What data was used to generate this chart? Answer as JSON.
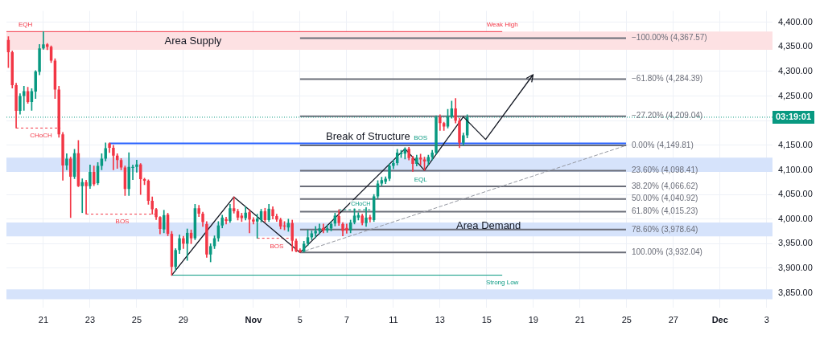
{
  "chart_data": {
    "type": "candlestick",
    "categories": [
      null,
      null,
      null,
      null,
      null,
      null,
      null,
      null,
      null,
      "21",
      null,
      null,
      null,
      null,
      null,
      null,
      null,
      null,
      null,
      null,
      null,
      "23",
      null,
      null,
      null,
      null,
      null,
      null,
      null,
      null,
      null,
      null,
      null,
      "25",
      null,
      null,
      null,
      null,
      null,
      null,
      null,
      null,
      null,
      null,
      null,
      "29",
      null,
      null,
      null,
      null,
      null,
      null,
      null,
      null,
      null,
      null,
      null,
      null,
      null,
      null,
      null,
      null,
      null,
      "Nov",
      null,
      null,
      null,
      null,
      null,
      null,
      null,
      null,
      null,
      null,
      null,
      "5",
      null,
      null,
      null,
      null,
      null,
      null,
      null,
      null,
      null,
      null,
      null,
      "7",
      null,
      null,
      null,
      null,
      null,
      null,
      null,
      null,
      null,
      null,
      null,
      "11",
      null,
      null,
      null,
      null,
      null,
      null,
      null,
      null,
      null,
      null,
      null,
      "13",
      null,
      null,
      null,
      null,
      null,
      null,
      null,
      null,
      null,
      null,
      null,
      "15",
      null,
      null,
      null,
      null,
      null,
      null,
      null,
      null,
      null,
      null,
      null,
      "19",
      null,
      null,
      null,
      null,
      null,
      null,
      null,
      null,
      null,
      null,
      null,
      "21",
      null,
      null,
      null,
      null,
      null,
      null,
      null,
      null,
      null,
      null,
      null,
      "25",
      null,
      null,
      null,
      null,
      null,
      null,
      null,
      null,
      null,
      null,
      null,
      "27",
      null,
      null,
      null,
      null,
      null,
      null,
      null,
      null,
      null,
      null,
      null,
      "Dec",
      null,
      null,
      null,
      null,
      null,
      null,
      null,
      null,
      null,
      null,
      null,
      "3",
      null
    ],
    "ohlc": [
      [
        4364,
        4371,
        4308,
        4339
      ],
      [
        4339,
        4342,
        4266,
        4272
      ],
      [
        4272,
        4276,
        4185,
        4220
      ],
      [
        4220,
        4255,
        4213,
        4250
      ],
      [
        4250,
        4270,
        4221,
        4260
      ],
      [
        4260,
        4268,
        4235,
        4238
      ],
      [
        4238,
        4265,
        4221,
        4260
      ],
      [
        4259,
        4302,
        4245,
        4300
      ],
      [
        4299,
        4355,
        4293,
        4347
      ],
      [
        4347,
        4381,
        4345,
        4355
      ],
      [
        4355,
        4357,
        4344,
        4350
      ],
      [
        4350,
        4352,
        4318,
        4322
      ],
      [
        4322,
        4326,
        4245,
        4263
      ],
      [
        4263,
        4270,
        4166,
        4172
      ],
      [
        4172,
        4176,
        4079,
        4109
      ],
      [
        4109,
        4133,
        4100,
        4123
      ],
      [
        4123,
        4126,
        4003,
        4086
      ],
      [
        4086,
        4142,
        4082,
        4134
      ],
      [
        4134,
        4160,
        4066,
        4067
      ],
      [
        4067,
        4082,
        4013,
        4075
      ],
      [
        4075,
        4079,
        4010,
        4067
      ],
      [
        4067,
        4110,
        4062,
        4096
      ],
      [
        4096,
        4108,
        4068,
        4071
      ],
      [
        4073,
        4115,
        4070,
        4108
      ],
      [
        4108,
        4133,
        4100,
        4123
      ],
      [
        4123,
        4155,
        4118,
        4144
      ],
      [
        4154,
        4155,
        4135,
        4145
      ],
      [
        4145,
        4150,
        4100,
        4129
      ],
      [
        4129,
        4133,
        4103,
        4120
      ],
      [
        4120,
        4123,
        4100,
        4105
      ],
      [
        4105,
        4108,
        4048,
        4061
      ],
      [
        4061,
        4135,
        4048,
        4106
      ],
      [
        4104,
        4110,
        4080,
        4106
      ],
      [
        4106,
        4120,
        4095,
        4111
      ],
      [
        4111,
        4113,
        4050,
        4081
      ],
      [
        4081,
        4083,
        4070,
        4078
      ],
      [
        4078,
        4080,
        4030,
        4037
      ],
      [
        4037,
        4045,
        4010,
        4020
      ],
      [
        4020,
        4022,
        3999,
        4004
      ],
      [
        4004,
        4005,
        3970,
        3980
      ],
      [
        3979,
        4018,
        3972,
        4008
      ],
      [
        4009,
        4012,
        3966,
        3970
      ],
      [
        3970,
        3975,
        3886,
        3903
      ],
      [
        3903,
        3940,
        3895,
        3937
      ],
      [
        3937,
        3968,
        3930,
        3961
      ],
      [
        3961,
        3965,
        3940,
        3950
      ],
      [
        3950,
        3980,
        3916,
        3972
      ],
      [
        3972,
        3978,
        3950,
        3961
      ],
      [
        3961,
        4030,
        3958,
        4022
      ],
      [
        4022,
        4028,
        4005,
        4011
      ],
      [
        4011,
        4014,
        3985,
        3994
      ],
      [
        3990,
        3995,
        3922,
        3928
      ],
      [
        3928,
        3950,
        3913,
        3945
      ],
      [
        3945,
        3966,
        3940,
        3961
      ],
      [
        3961,
        3995,
        3955,
        3987
      ],
      [
        3987,
        4008,
        3982,
        4003
      ],
      [
        4000,
        4004,
        3990,
        3996
      ],
      [
        3996,
        4030,
        3993,
        4022
      ],
      [
        4022,
        4045,
        4012,
        4016
      ],
      [
        4016,
        4020,
        3998,
        4003
      ],
      [
        4007,
        4012,
        3995,
        4002
      ],
      [
        4002,
        4025,
        3998,
        4013
      ],
      [
        4014,
        4020,
        3972,
        3999
      ],
      [
        3999,
        4003,
        3990,
        3995
      ],
      [
        3995,
        4010,
        3961,
        4001
      ],
      [
        3998,
        4020,
        3994,
        4016
      ],
      [
        4016,
        4022,
        3994,
        3998
      ],
      [
        3998,
        4030,
        3995,
        4021
      ],
      [
        4020,
        4025,
        4000,
        4006
      ],
      [
        4006,
        4010,
        3995,
        3999
      ],
      [
        3999,
        4002,
        3980,
        3985
      ],
      [
        3987,
        3995,
        3978,
        3985
      ],
      [
        3983,
        4000,
        3975,
        3992
      ],
      [
        3992,
        3998,
        3935,
        3956
      ],
      [
        3956,
        3960,
        3933,
        3935
      ],
      [
        3937,
        3940,
        3932,
        3933
      ],
      [
        3934,
        3955,
        3933,
        3950
      ],
      [
        3950,
        3978,
        3946,
        3963
      ],
      [
        3963,
        3976,
        3958,
        3971
      ],
      [
        3971,
        3985,
        3962,
        3976
      ],
      [
        3976,
        3990,
        3970,
        3981
      ],
      [
        3982,
        3990,
        3972,
        3977
      ],
      [
        3977,
        3988,
        3973,
        3981
      ],
      [
        3981,
        3995,
        3976,
        3990
      ],
      [
        3991,
        4012,
        3986,
        4007
      ],
      [
        4006,
        4019,
        3987,
        3992
      ],
      [
        3990,
        3993,
        3966,
        3976
      ],
      [
        3982,
        3990,
        3971,
        3977
      ],
      [
        3977,
        3998,
        3972,
        3993
      ],
      [
        3993,
        4021,
        3990,
        4007
      ],
      [
        4003,
        4013,
        3998,
        4008
      ],
      [
        4007,
        4010,
        3988,
        3992
      ],
      [
        3992,
        4025,
        3985,
        4003
      ],
      [
        4004,
        4008,
        3994,
        3999
      ],
      [
        3998,
        4050,
        3995,
        4046
      ],
      [
        4046,
        4078,
        4042,
        4072
      ],
      [
        4072,
        4085,
        4068,
        4079
      ],
      [
        4076,
        4086,
        4072,
        4082
      ],
      [
        4082,
        4112,
        4078,
        4108
      ],
      [
        4108,
        4120,
        4102,
        4114
      ],
      [
        4114,
        4142,
        4110,
        4135
      ],
      [
        4132,
        4140,
        4125,
        4135
      ],
      [
        4133,
        4145,
        4122,
        4143
      ],
      [
        4143,
        4146,
        4120,
        4124
      ],
      [
        4124,
        4128,
        4097,
        4112
      ],
      [
        4112,
        4130,
        4108,
        4125
      ],
      [
        4125,
        4132,
        4110,
        4121
      ],
      [
        4121,
        4126,
        4099,
        4117
      ],
      [
        4117,
        4130,
        4110,
        4126
      ],
      [
        4126,
        4140,
        4120,
        4135
      ],
      [
        4135,
        4210,
        4132,
        4207
      ],
      [
        4207,
        4212,
        4180,
        4195
      ],
      [
        4195,
        4197,
        4180,
        4188
      ],
      [
        4188,
        4223,
        4185,
        4208
      ],
      [
        4208,
        4240,
        4205,
        4225
      ],
      [
        4225,
        4245,
        4195,
        4200
      ],
      [
        4200,
        4205,
        4145,
        4155
      ],
      [
        4155,
        4175,
        4150,
        4170
      ],
      [
        4170,
        4212,
        4165,
        4207
      ],
      null,
      null,
      null,
      null,
      null,
      null,
      null,
      null,
      null,
      null,
      null,
      null,
      null,
      null,
      null,
      null,
      null,
      null,
      null,
      null,
      null,
      null,
      null,
      null,
      null,
      null,
      null,
      null,
      null,
      null,
      null,
      null,
      null,
      null,
      null,
      null,
      null,
      null,
      null,
      null,
      null,
      null,
      null,
      null,
      null,
      null,
      null,
      null,
      null,
      null,
      null,
      null,
      null,
      null,
      null,
      null,
      null,
      null,
      null,
      null,
      null,
      null,
      null,
      null,
      null,
      null,
      null,
      null,
      null,
      null,
      null,
      null,
      null,
      null,
      null,
      null,
      null,
      null
    ],
    "series": [
      {
        "type": "line",
        "color": "#131722",
        "values": [
          null,
          null,
          null,
          null,
          null,
          null,
          null,
          null,
          null,
          null,
          null,
          null,
          null,
          null,
          null,
          null,
          null,
          null,
          null,
          null,
          null,
          null,
          null,
          null,
          null,
          null,
          null,
          null,
          null,
          null,
          null,
          null,
          null,
          null,
          null,
          null,
          null,
          null,
          null,
          null,
          null,
          null,
          3886,
          null,
          null,
          null,
          null,
          null,
          null,
          null,
          null,
          null,
          null,
          null,
          null,
          null,
          null,
          null,
          4045,
          null,
          null,
          null,
          null,
          null,
          null,
          null,
          null,
          null,
          null,
          null,
          null,
          null,
          null,
          null,
          null,
          3932,
          null,
          null,
          null,
          null,
          null,
          null,
          null,
          null,
          null,
          null,
          null,
          null,
          null,
          null,
          null,
          null,
          null,
          null,
          null,
          null,
          null,
          null,
          null,
          null,
          null,
          null,
          4143,
          null,
          null,
          null,
          null,
          4099,
          null,
          null,
          null,
          null,
          null,
          null,
          null,
          null,
          null,
          4208,
          null,
          null,
          null,
          null,
          null,
          null,
          null,
          null,
          null,
          null,
          null,
          null,
          null,
          null,
          null,
          null,
          null,
          null,
          null,
          null,
          null,
          null,
          null,
          null,
          null,
          null,
          null,
          null,
          null,
          null,
          null,
          null,
          null,
          null,
          null,
          null,
          null,
          null,
          null,
          null,
          null,
          null,
          null,
          null,
          null,
          null,
          null,
          null,
          null,
          null,
          null,
          null,
          null,
          null,
          null,
          null,
          null,
          null,
          null,
          null,
          null,
          null,
          null,
          null,
          null,
          null,
          null,
          null,
          null,
          null,
          null,
          null,
          null,
          null,
          null,
          null,
          null,
          null,
          null
        ]
      },
      {
        "type": "line",
        "color": "#9598a1",
        "line_style": "dashed",
        "values": [
          null,
          null,
          null,
          null,
          null,
          null,
          null,
          null,
          null,
          null,
          null,
          null,
          null,
          null,
          null,
          null,
          null,
          null,
          null,
          null,
          null,
          null,
          null,
          null,
          null,
          null,
          null,
          null,
          null,
          null,
          null,
          null,
          null,
          null,
          null,
          null,
          null,
          null,
          null,
          null,
          null,
          null,
          null,
          null,
          null,
          null,
          null,
          null,
          null,
          null,
          null,
          null,
          null,
          null,
          null,
          null,
          null,
          null,
          null,
          null,
          null,
          null,
          null,
          null,
          null,
          null,
          null,
          null,
          null,
          null,
          null,
          null,
          null,
          null,
          null,
          3932,
          null,
          null,
          null,
          null,
          null,
          null,
          null,
          null,
          null,
          null,
          null,
          null,
          null,
          null,
          null,
          null,
          null,
          null,
          null,
          null,
          null,
          null,
          null,
          null,
          null,
          null,
          null,
          null,
          null,
          null,
          null,
          null,
          null,
          null,
          null,
          null,
          null,
          null,
          null,
          null,
          null,
          null,
          null,
          null,
          null,
          null,
          null,
          null,
          null,
          null,
          null,
          null,
          null,
          null,
          null,
          null,
          null,
          null,
          null,
          null,
          null,
          null,
          null,
          null,
          null,
          null,
          null,
          null,
          null,
          null,
          null,
          null,
          null,
          null,
          null,
          null,
          null,
          null,
          null,
          null,
          null,
          null,
          null,
          4150,
          null,
          null,
          null,
          null,
          null,
          null,
          null,
          null,
          null,
          null,
          null,
          null,
          null,
          null,
          null,
          null,
          null,
          null,
          null,
          null,
          null,
          null,
          null,
          null,
          null,
          null,
          null,
          null,
          null,
          null,
          null,
          null,
          null,
          null,
          null,
          null,
          null
        ]
      }
    ],
    "ylim": [
      3820,
      4423
    ],
    "yticks": [
      {
        "value": 3850,
        "label": "3,850.00"
      },
      {
        "value": 3900,
        "label": "3,900.00"
      },
      {
        "value": 3950,
        "label": "3,950.00"
      },
      {
        "value": 4000,
        "label": "4,000.00"
      },
      {
        "value": 4050,
        "label": "4,050.00"
      },
      {
        "value": 4100,
        "label": "4,100.00"
      },
      {
        "value": 4150,
        "label": "4,150.00"
      },
      {
        "value": 4200,
        "label": null
      },
      {
        "value": 4250,
        "label": "4,250.00"
      },
      {
        "value": 4300,
        "label": "4,300.00"
      },
      {
        "value": 4350,
        "label": "4,350.00"
      },
      {
        "value": 4400,
        "label": "4,400.00"
      }
    ],
    "grid": true,
    "bands": [
      {
        "axis": "y",
        "from": 4344,
        "to": 4381,
        "label": "Area Supply",
        "color": "#fde1e3"
      },
      {
        "axis": "y",
        "from": 4096,
        "to": 4125,
        "color": "#d6e3fb"
      },
      {
        "axis": "y",
        "from": 3965,
        "to": 3993,
        "label": "Area Demand",
        "color": "#d6e3fb"
      },
      {
        "axis": "y",
        "from": 3837,
        "to": 3857,
        "color": "#d6e3fb"
      }
    ],
    "ref_lines": [
      {
        "axis": "y",
        "value": 4367.57,
        "label": "−100.00% (4,367.57)",
        "color": "#6b6e79"
      },
      {
        "axis": "y",
        "value": 4284.39,
        "label": "−61.80% (4,284.39)",
        "color": "#6b6e79"
      },
      {
        "axis": "y",
        "value": 4209.04,
        "label": "−27.20% (4,209.04)",
        "color": "#6b6e79"
      },
      {
        "axis": "y",
        "value": 4149.81,
        "label": "0.00% (4,149.81)",
        "color": "#6b6e79"
      },
      {
        "axis": "y",
        "value": 4098.41,
        "label": "23.60% (4,098.41)",
        "color": "#6b6e79"
      },
      {
        "axis": "y",
        "value": 4066.62,
        "label": "38.20% (4,066.62)",
        "color": "#6b6e79"
      },
      {
        "axis": "y",
        "value": 4040.92,
        "label": "50.00% (4,040.92)",
        "color": "#6b6e79"
      },
      {
        "axis": "y",
        "value": 4015.23,
        "label": "61.80% (4,015.23)",
        "color": "#6b6e79"
      },
      {
        "axis": "y",
        "value": 3978.64,
        "label": "78.60% (3,978.64)",
        "color": "#6b6e79"
      },
      {
        "axis": "y",
        "value": 3932.04,
        "label": "100.00% (3,932.04)",
        "color": "#6b6e79"
      },
      {
        "axis": "y",
        "value": 4154,
        "label": "Break of Structure",
        "color": "#2962ff"
      },
      {
        "axis": "y",
        "value": 4207,
        "color": "#089981",
        "line_style": "dotted"
      },
      {
        "axis": "y",
        "value": 4381,
        "label": "Weak High",
        "color": "#f23645"
      },
      {
        "axis": "y",
        "value": 4185,
        "label": "CHoCH",
        "color": "#f23645",
        "line_style": "dashed"
      },
      {
        "axis": "y",
        "value": 4010,
        "label": "BOS",
        "color": "#f23645",
        "line_style": "dashed"
      },
      {
        "axis": "y",
        "value": 3961,
        "label": "BOS",
        "color": "#f23645",
        "line_style": "dashed"
      },
      {
        "axis": "y",
        "value": 4019,
        "label": "CHoCH",
        "color": "#089981",
        "line_style": "dashed"
      },
      {
        "axis": "y",
        "value": 3886,
        "label": "Strong Low",
        "color": "#089981"
      }
    ],
    "annotations": [
      {
        "text": "EQH",
        "y": 4381
      },
      {
        "text": "EQL",
        "y": 4098
      },
      {
        "text": "BOS",
        "y": 4154
      },
      "03:19:01"
    ]
  }
}
